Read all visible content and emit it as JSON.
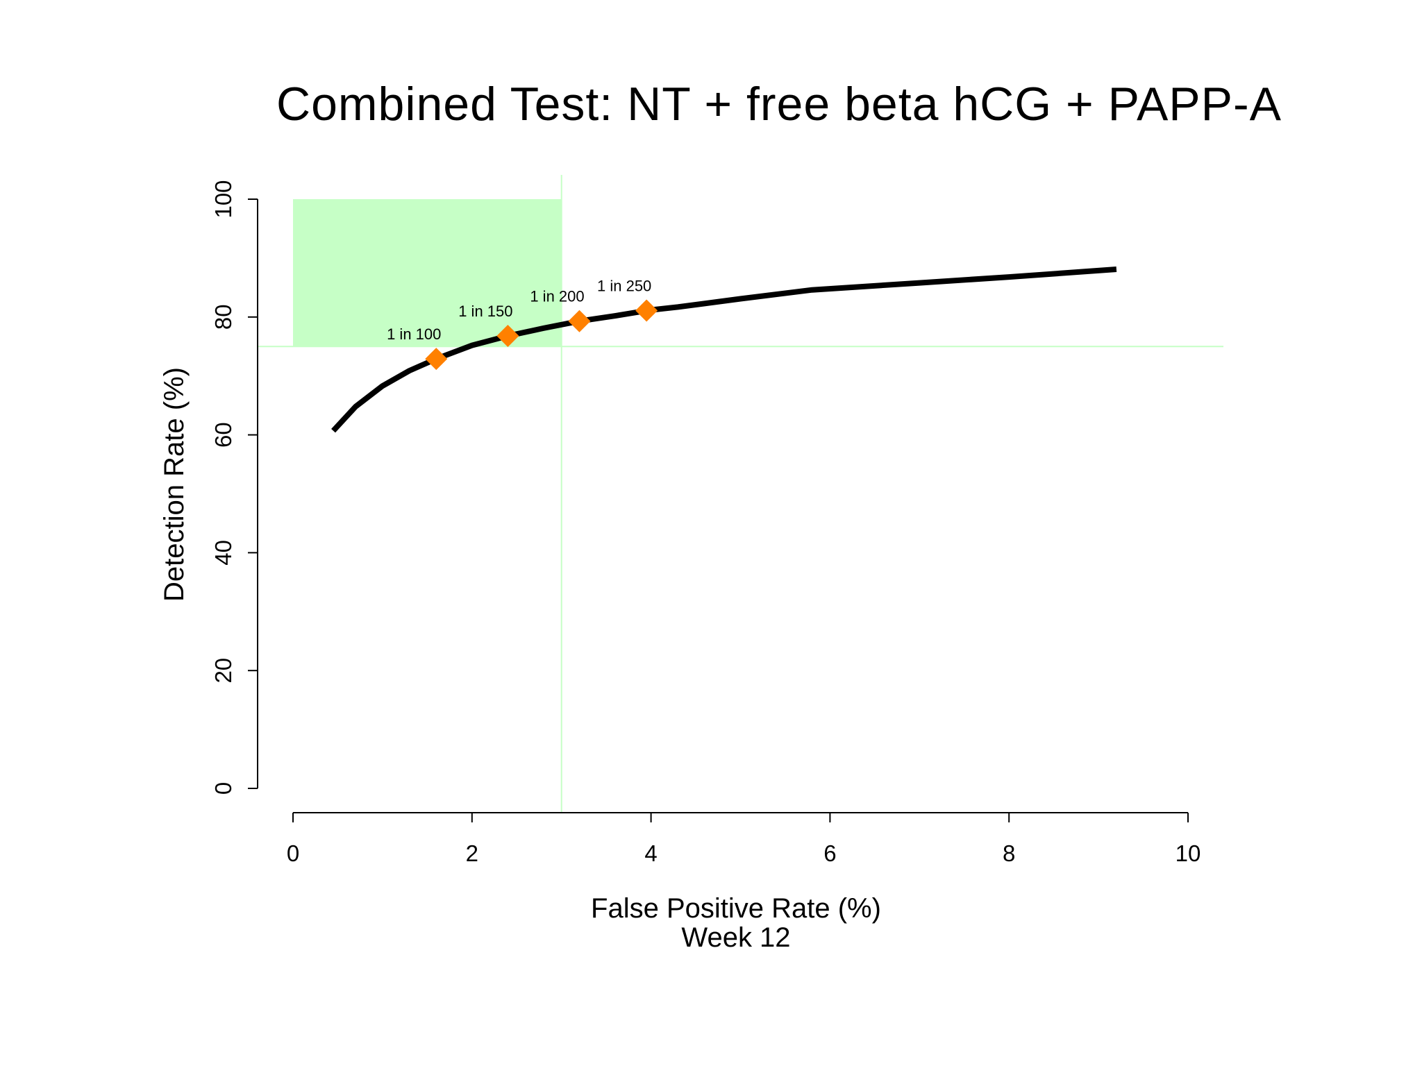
{
  "chart_data": {
    "type": "line",
    "title": "Combined Test: NT + free beta hCG + PAPP-A",
    "xlabel": "False Positive Rate (%)",
    "xlabel_sub": "Week 12",
    "ylabel": "Detection Rate (%)",
    "xlim": [
      0,
      10
    ],
    "ylim": [
      0,
      100
    ],
    "x_ticks": [
      0,
      2,
      4,
      6,
      8,
      10
    ],
    "y_ticks": [
      0,
      20,
      40,
      60,
      80,
      100
    ],
    "grid": false,
    "series": [
      {
        "x": [
          0.45,
          0.7,
          1.0,
          1.3,
          1.6,
          2.0,
          2.4,
          2.8,
          3.2,
          3.6,
          4.0,
          4.3,
          5.0,
          5.8,
          7.0,
          8.0,
          9.2
        ],
        "y": [
          60.7,
          64.8,
          68.3,
          70.9,
          72.9,
          75.2,
          76.8,
          78.1,
          79.3,
          80.2,
          81.2,
          81.7,
          83.1,
          84.6,
          85.8,
          86.8,
          88.1
        ]
      }
    ],
    "markers": [
      {
        "label": "1 in 100",
        "x": 1.6,
        "y": 72.9
      },
      {
        "label": "1 in 150",
        "x": 2.4,
        "y": 76.8
      },
      {
        "label": "1 in 200",
        "x": 3.2,
        "y": 79.3
      },
      {
        "label": "1 in 250",
        "x": 3.95,
        "y": 81.1
      }
    ],
    "target_region": {
      "x": [
        0,
        3
      ],
      "y": [
        75,
        100
      ]
    },
    "reference_lines": {
      "x": 3,
      "y": 75
    },
    "colors": {
      "curve": "#000000",
      "marker": "#ff8000",
      "region": "#c6ffc6",
      "reference": "#c6ffc6"
    }
  }
}
